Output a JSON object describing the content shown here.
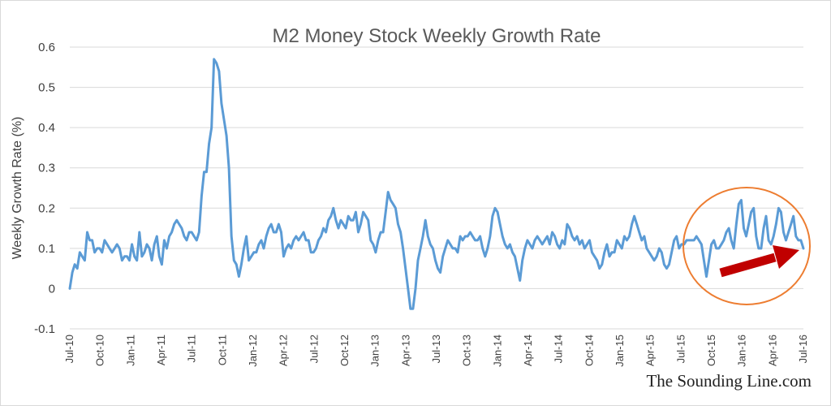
{
  "chart_data": {
    "type": "line",
    "title": "M2 Money Stock Weekly Growth Rate",
    "ylabel": "Weekly Growth Rate (%)",
    "xlabel": "",
    "ylim": [
      -0.1,
      0.6
    ],
    "yticks": [
      "0.6",
      "0.5",
      "0.4",
      "0.3",
      "0.2",
      "0.1",
      "0",
      "-0.1"
    ],
    "ytick_values": [
      0.6,
      0.5,
      0.4,
      0.3,
      0.2,
      0.1,
      0,
      -0.1
    ],
    "xticks": [
      "Jul-10",
      "Oct-10",
      "Jan-11",
      "Apr-11",
      "Jul-11",
      "Oct-11",
      "Jan-12",
      "Apr-12",
      "Jul-12",
      "Oct-12",
      "Jan-13",
      "Apr-13",
      "Jul-13",
      "Oct-13",
      "Jan-14",
      "Apr-14",
      "Jul-14",
      "Oct-14",
      "Jan-15",
      "Apr-15",
      "Jul-15",
      "Oct-15",
      "Jan-16",
      "Apr-16",
      "Jul-16"
    ],
    "grid": true,
    "legend": "none",
    "series": [
      {
        "color": "#5b9bd5",
        "values": [
          0.0,
          0.04,
          0.06,
          0.05,
          0.09,
          0.08,
          0.07,
          0.14,
          0.12,
          0.12,
          0.09,
          0.1,
          0.1,
          0.09,
          0.12,
          0.11,
          0.1,
          0.09,
          0.1,
          0.11,
          0.1,
          0.07,
          0.08,
          0.08,
          0.07,
          0.11,
          0.08,
          0.07,
          0.14,
          0.08,
          0.09,
          0.11,
          0.1,
          0.07,
          0.11,
          0.13,
          0.08,
          0.06,
          0.12,
          0.1,
          0.13,
          0.14,
          0.16,
          0.17,
          0.16,
          0.15,
          0.13,
          0.12,
          0.14,
          0.14,
          0.13,
          0.12,
          0.14,
          0.23,
          0.29,
          0.29,
          0.36,
          0.4,
          0.57,
          0.56,
          0.54,
          0.46,
          0.42,
          0.38,
          0.3,
          0.13,
          0.07,
          0.06,
          0.03,
          0.06,
          0.1,
          0.13,
          0.07,
          0.08,
          0.09,
          0.09,
          0.11,
          0.12,
          0.1,
          0.13,
          0.15,
          0.16,
          0.14,
          0.14,
          0.16,
          0.14,
          0.08,
          0.1,
          0.11,
          0.1,
          0.12,
          0.13,
          0.12,
          0.13,
          0.14,
          0.12,
          0.12,
          0.09,
          0.09,
          0.1,
          0.12,
          0.13,
          0.15,
          0.14,
          0.17,
          0.18,
          0.2,
          0.17,
          0.15,
          0.17,
          0.16,
          0.15,
          0.18,
          0.17,
          0.17,
          0.19,
          0.14,
          0.16,
          0.19,
          0.18,
          0.17,
          0.12,
          0.11,
          0.09,
          0.12,
          0.14,
          0.14,
          0.19,
          0.24,
          0.22,
          0.21,
          0.2,
          0.16,
          0.14,
          0.1,
          0.05,
          0.0,
          -0.05,
          -0.05,
          0.0,
          0.07,
          0.1,
          0.13,
          0.17,
          0.13,
          0.11,
          0.1,
          0.07,
          0.05,
          0.04,
          0.08,
          0.1,
          0.12,
          0.11,
          0.1,
          0.1,
          0.09,
          0.13,
          0.12,
          0.13,
          0.13,
          0.14,
          0.13,
          0.12,
          0.12,
          0.13,
          0.1,
          0.08,
          0.1,
          0.13,
          0.18,
          0.2,
          0.19,
          0.16,
          0.13,
          0.11,
          0.1,
          0.11,
          0.09,
          0.08,
          0.05,
          0.02,
          0.07,
          0.1,
          0.12,
          0.11,
          0.1,
          0.12,
          0.13,
          0.12,
          0.11,
          0.12,
          0.13,
          0.11,
          0.14,
          0.13,
          0.11,
          0.1,
          0.12,
          0.11,
          0.16,
          0.15,
          0.13,
          0.12,
          0.13,
          0.11,
          0.12,
          0.1,
          0.11,
          0.12,
          0.09,
          0.08,
          0.07,
          0.05,
          0.06,
          0.09,
          0.11,
          0.08,
          0.09,
          0.09,
          0.12,
          0.11,
          0.1,
          0.13,
          0.12,
          0.13,
          0.16,
          0.18,
          0.16,
          0.14,
          0.12,
          0.13,
          0.1,
          0.09,
          0.08,
          0.07,
          0.08,
          0.1,
          0.09,
          0.06,
          0.05,
          0.06,
          0.09,
          0.12,
          0.13,
          0.1,
          0.11,
          0.11,
          0.12,
          0.12,
          0.12,
          0.12,
          0.13,
          0.12,
          0.11,
          0.07,
          0.03,
          0.07,
          0.11,
          0.12,
          0.1,
          0.1,
          0.11,
          0.12,
          0.14,
          0.15,
          0.12,
          0.1,
          0.16,
          0.21,
          0.22,
          0.15,
          0.13,
          0.16,
          0.19,
          0.2,
          0.13,
          0.1,
          0.1,
          0.15,
          0.18,
          0.12,
          0.11,
          0.13,
          0.16,
          0.2,
          0.19,
          0.14,
          0.12,
          0.14,
          0.16,
          0.18,
          0.13,
          0.12,
          0.12,
          0.1
        ]
      }
    ],
    "annotations": {
      "highlight_circle": {
        "color": "#ed7d31",
        "shape": "ellipse"
      },
      "arrow": {
        "color": "#c00000",
        "direction": "up-right"
      }
    }
  },
  "watermark": "The Sounding Line.com"
}
